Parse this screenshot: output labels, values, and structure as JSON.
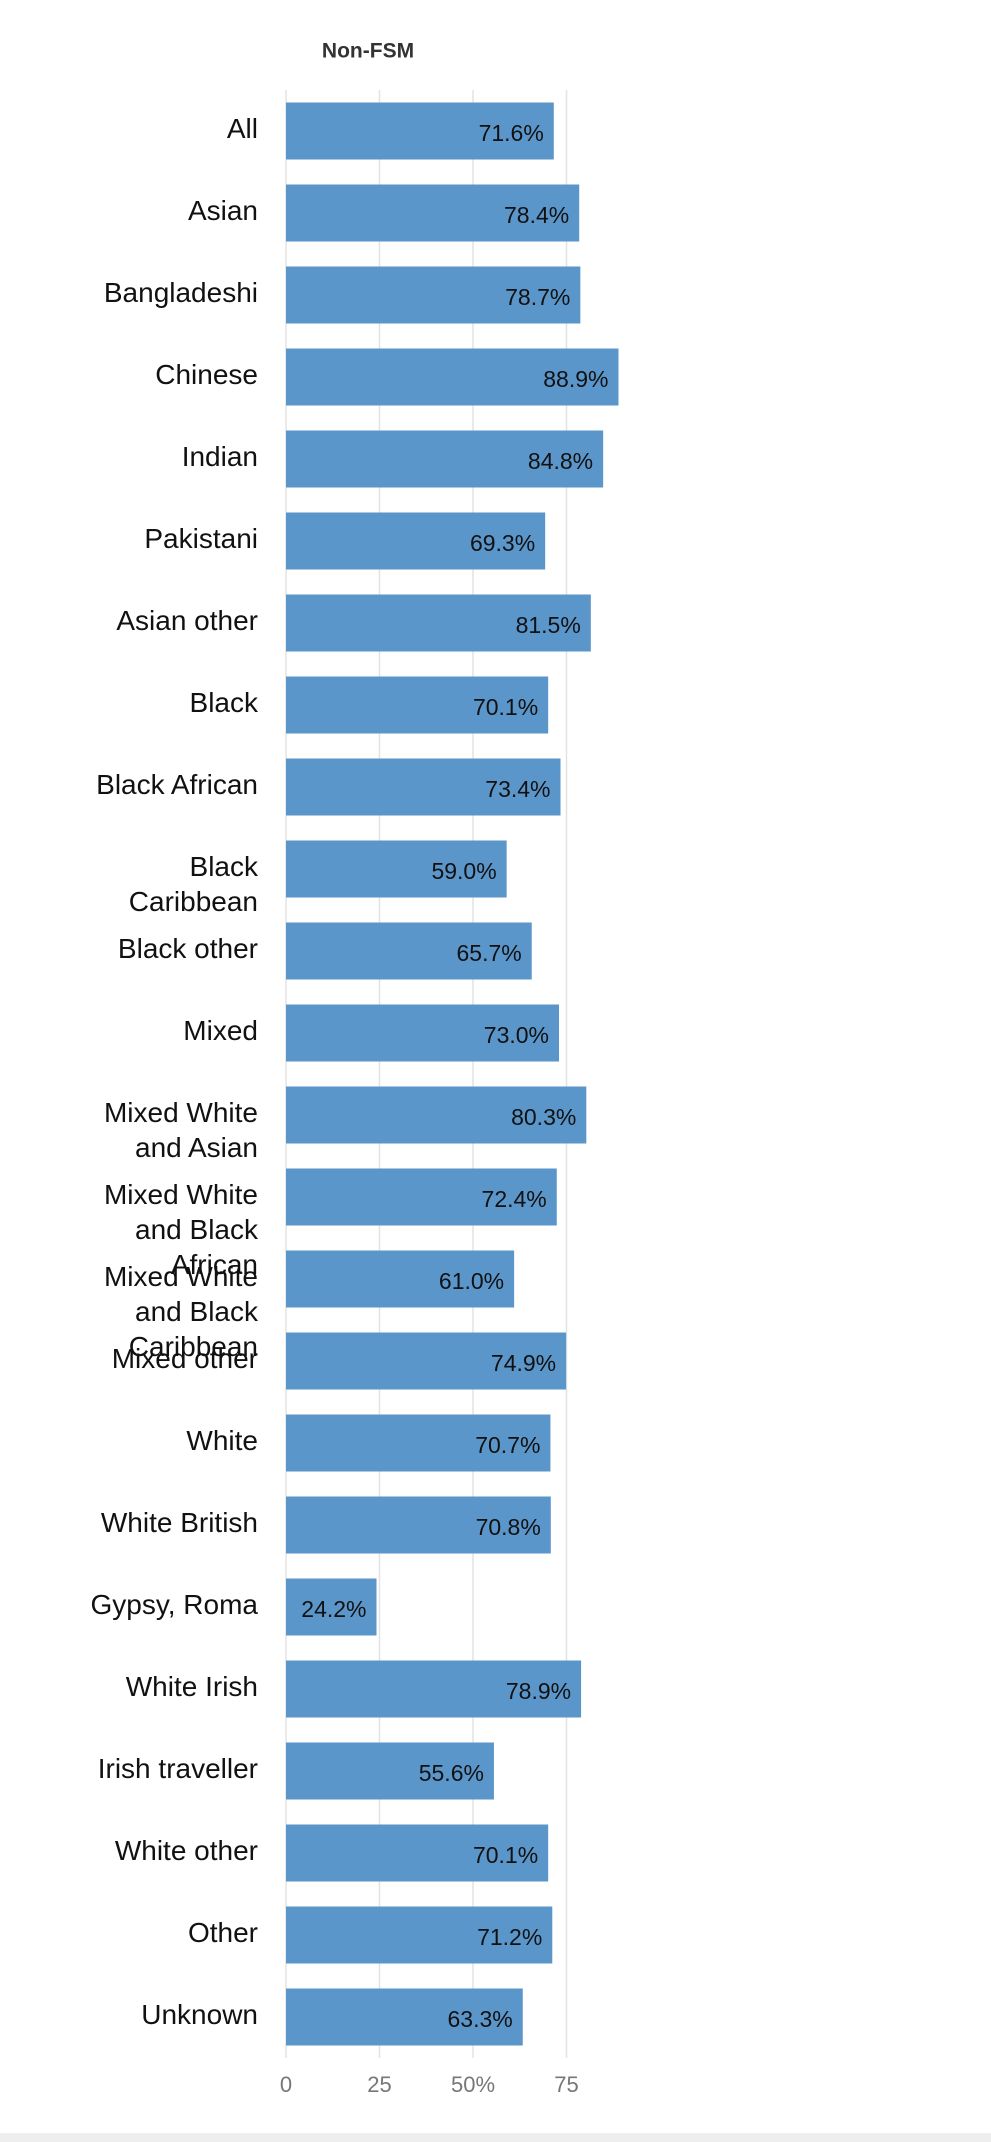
{
  "chart_data": {
    "type": "barh",
    "title": "Non-FSM",
    "categories": [
      "All",
      "Asian",
      "Bangladeshi",
      "Chinese",
      "Indian",
      "Pakistani",
      "Asian other",
      "Black",
      "Black African",
      "Black Caribbean",
      "Black other",
      "Mixed",
      "Mixed White and Asian",
      "Mixed White and Black African",
      "Mixed White and Black Caribbean",
      "Mixed other",
      "White",
      "White British",
      "Gypsy, Roma",
      "White Irish",
      "Irish traveller",
      "White other",
      "Other",
      "Unknown"
    ],
    "values": [
      71.6,
      78.4,
      78.7,
      88.9,
      84.8,
      69.3,
      81.5,
      70.1,
      73.4,
      59.0,
      65.7,
      73.0,
      80.3,
      72.4,
      61.0,
      74.9,
      70.7,
      70.8,
      24.2,
      78.9,
      55.6,
      70.1,
      71.2,
      63.3
    ],
    "value_labels": [
      "71.6%",
      "78.4%",
      "78.7%",
      "88.9%",
      "84.8%",
      "69.3%",
      "81.5%",
      "70.1%",
      "73.4%",
      "59.0%",
      "65.7%",
      "73.0%",
      "80.3%",
      "72.4%",
      "61.0%",
      "74.9%",
      "70.7%",
      "70.8%",
      "24.2%",
      "78.9%",
      "55.6%",
      "70.1%",
      "71.2%",
      "63.3%"
    ],
    "color": "#5b96cb",
    "xlim": [
      0,
      100
    ],
    "xticks": [
      0,
      25,
      {
        "value": 50,
        "label": "50%"
      },
      75
    ],
    "grid": true
  }
}
